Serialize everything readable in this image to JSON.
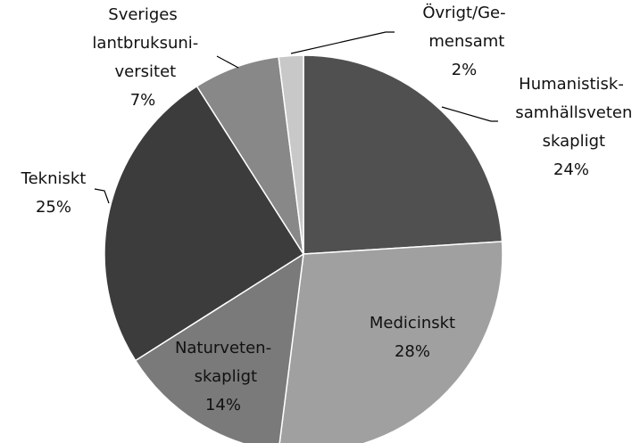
{
  "chart_data": {
    "type": "pie",
    "categories": [
      "Humanistisk-\nsamhällsveten\nskapligt",
      "Medicinskt",
      "Naturveten-\nskapligt",
      "Tekniskt",
      "Sveriges\nlantbruksuni-\nversitet",
      "Övrigt/Ge-\nmensamt"
    ],
    "values": [
      24,
      28,
      14,
      25,
      7,
      2
    ],
    "value_labels": [
      "24%",
      "28%",
      "14%",
      "25%",
      "7%",
      "2%"
    ],
    "colors": [
      "#505050",
      "#a0a0a0",
      "#7a7a7a",
      "#3c3c3c",
      "#888888",
      "#c8c8c8"
    ]
  }
}
